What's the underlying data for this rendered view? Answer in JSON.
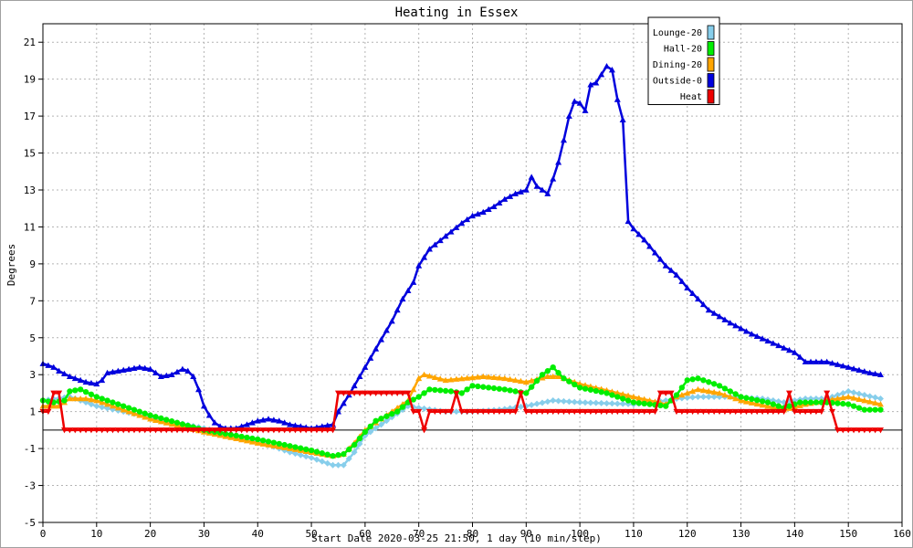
{
  "chart_data": {
    "type": "line",
    "title": "Heating in Essex",
    "xlabel": "Start Date 2020-03-25 21:50, 1 day (10 min/step)",
    "ylabel": "Degrees",
    "xlim": [
      0,
      160
    ],
    "ylim": [
      -5,
      22
    ],
    "x_ticks": [
      0,
      10,
      20,
      30,
      40,
      50,
      60,
      70,
      80,
      90,
      100,
      110,
      120,
      130,
      140,
      150,
      160
    ],
    "y_ticks": [
      -5,
      -3,
      -1,
      1,
      3,
      5,
      7,
      9,
      11,
      13,
      15,
      17,
      19,
      21
    ],
    "grid": true,
    "legend_position": "top-right",
    "x_step": 1,
    "series": [
      {
        "name": "Lounge-20",
        "color": "#87ceeb",
        "marker": "diamond",
        "points": [
          [
            0,
            1.6
          ],
          [
            5,
            1.8
          ],
          [
            10,
            1.3
          ],
          [
            20,
            0.7
          ],
          [
            30,
            0.1
          ],
          [
            40,
            -0.6
          ],
          [
            46,
            -1.2
          ],
          [
            50,
            -1.5
          ],
          [
            54,
            -1.9
          ],
          [
            56,
            -1.9
          ],
          [
            58,
            -1.2
          ],
          [
            60,
            -0.3
          ],
          [
            63,
            0.3
          ],
          [
            66,
            0.9
          ],
          [
            68,
            1.3
          ],
          [
            70,
            1.2
          ],
          [
            75,
            1.0
          ],
          [
            80,
            1.0
          ],
          [
            85,
            1.1
          ],
          [
            90,
            1.3
          ],
          [
            95,
            1.6
          ],
          [
            100,
            1.5
          ],
          [
            110,
            1.4
          ],
          [
            114,
            1.5
          ],
          [
            118,
            1.7
          ],
          [
            122,
            1.8
          ],
          [
            128,
            1.8
          ],
          [
            134,
            1.7
          ],
          [
            138,
            1.5
          ],
          [
            142,
            1.7
          ],
          [
            146,
            1.7
          ],
          [
            150,
            2.1
          ],
          [
            156,
            1.7
          ]
        ]
      },
      {
        "name": "Hall-20",
        "color": "#00ee00",
        "marker": "circle",
        "points": [
          [
            0,
            1.6
          ],
          [
            2,
            1.5
          ],
          [
            4,
            1.6
          ],
          [
            5,
            2.1
          ],
          [
            7,
            2.2
          ],
          [
            10,
            1.8
          ],
          [
            20,
            0.8
          ],
          [
            30,
            0.0
          ],
          [
            40,
            -0.5
          ],
          [
            50,
            -1.1
          ],
          [
            54,
            -1.4
          ],
          [
            56,
            -1.3
          ],
          [
            58,
            -0.8
          ],
          [
            60,
            -0.1
          ],
          [
            62,
            0.5
          ],
          [
            66,
            1.0
          ],
          [
            68,
            1.5
          ],
          [
            70,
            1.8
          ],
          [
            72,
            2.2
          ],
          [
            76,
            2.1
          ],
          [
            78,
            2.0
          ],
          [
            80,
            2.4
          ],
          [
            86,
            2.2
          ],
          [
            90,
            2.0
          ],
          [
            93,
            3.0
          ],
          [
            95,
            3.4
          ],
          [
            97,
            2.8
          ],
          [
            100,
            2.3
          ],
          [
            105,
            2.0
          ],
          [
            110,
            1.5
          ],
          [
            116,
            1.3
          ],
          [
            118,
            1.9
          ],
          [
            120,
            2.7
          ],
          [
            122,
            2.8
          ],
          [
            126,
            2.4
          ],
          [
            130,
            1.8
          ],
          [
            135,
            1.5
          ],
          [
            138,
            1.2
          ],
          [
            141,
            1.5
          ],
          [
            146,
            1.5
          ],
          [
            150,
            1.4
          ],
          [
            153,
            1.1
          ],
          [
            156,
            1.1
          ]
        ]
      },
      {
        "name": "Dining-20",
        "color": "#ffa500",
        "marker": "triangle",
        "points": [
          [
            0,
            1.3
          ],
          [
            3,
            1.3
          ],
          [
            5,
            1.7
          ],
          [
            8,
            1.7
          ],
          [
            10,
            1.6
          ],
          [
            20,
            0.6
          ],
          [
            30,
            -0.1
          ],
          [
            40,
            -0.7
          ],
          [
            50,
            -1.2
          ],
          [
            54,
            -1.4
          ],
          [
            56,
            -1.3
          ],
          [
            58,
            -0.7
          ],
          [
            60,
            0.0
          ],
          [
            64,
            0.8
          ],
          [
            68,
            1.6
          ],
          [
            70,
            2.8
          ],
          [
            71,
            3.0
          ],
          [
            75,
            2.7
          ],
          [
            82,
            2.9
          ],
          [
            86,
            2.8
          ],
          [
            90,
            2.6
          ],
          [
            94,
            2.9
          ],
          [
            96,
            2.9
          ],
          [
            100,
            2.5
          ],
          [
            110,
            1.8
          ],
          [
            116,
            1.4
          ],
          [
            118,
            1.8
          ],
          [
            122,
            2.2
          ],
          [
            126,
            2.0
          ],
          [
            130,
            1.6
          ],
          [
            138,
            1.1
          ],
          [
            142,
            1.4
          ],
          [
            146,
            1.6
          ],
          [
            150,
            1.8
          ],
          [
            156,
            1.4
          ]
        ]
      },
      {
        "name": "Outside-0",
        "color": "#0000dd",
        "marker": "triangle",
        "points": [
          [
            0,
            3.6
          ],
          [
            2,
            3.4
          ],
          [
            3,
            3.2
          ],
          [
            5,
            2.9
          ],
          [
            8,
            2.6
          ],
          [
            10,
            2.5
          ],
          [
            11,
            2.7
          ],
          [
            12,
            3.1
          ],
          [
            14,
            3.2
          ],
          [
            18,
            3.4
          ],
          [
            20,
            3.3
          ],
          [
            22,
            2.9
          ],
          [
            24,
            3.0
          ],
          [
            26,
            3.3
          ],
          [
            27,
            3.2
          ],
          [
            28,
            2.9
          ],
          [
            29,
            2.2
          ],
          [
            30,
            1.3
          ],
          [
            31,
            0.8
          ],
          [
            32,
            0.4
          ],
          [
            33,
            0.2
          ],
          [
            34,
            0.1
          ],
          [
            36,
            0.1
          ],
          [
            38,
            0.3
          ],
          [
            40,
            0.5
          ],
          [
            42,
            0.6
          ],
          [
            44,
            0.5
          ],
          [
            46,
            0.3
          ],
          [
            48,
            0.2
          ],
          [
            50,
            0.1
          ],
          [
            52,
            0.2
          ],
          [
            54,
            0.3
          ],
          [
            55,
            1.0
          ],
          [
            57,
            1.9
          ],
          [
            59,
            2.9
          ],
          [
            61,
            3.9
          ],
          [
            63,
            4.9
          ],
          [
            65,
            5.9
          ],
          [
            67,
            7.1
          ],
          [
            69,
            8.0
          ],
          [
            70,
            8.9
          ],
          [
            72,
            9.8
          ],
          [
            75,
            10.5
          ],
          [
            78,
            11.2
          ],
          [
            80,
            11.6
          ],
          [
            82,
            11.8
          ],
          [
            84,
            12.1
          ],
          [
            86,
            12.5
          ],
          [
            88,
            12.8
          ],
          [
            90,
            13.0
          ],
          [
            91,
            13.7
          ],
          [
            92,
            13.2
          ],
          [
            93,
            13.0
          ],
          [
            94,
            12.8
          ],
          [
            95,
            13.6
          ],
          [
            96,
            14.5
          ],
          [
            97,
            15.7
          ],
          [
            98,
            17.0
          ],
          [
            99,
            17.8
          ],
          [
            100,
            17.7
          ],
          [
            101,
            17.3
          ],
          [
            102,
            18.7
          ],
          [
            103,
            18.8
          ],
          [
            105,
            19.7
          ],
          [
            106,
            19.5
          ],
          [
            107,
            17.9
          ],
          [
            108,
            16.8
          ],
          [
            109,
            11.3
          ],
          [
            110,
            10.9
          ],
          [
            112,
            10.3
          ],
          [
            114,
            9.6
          ],
          [
            116,
            8.9
          ],
          [
            118,
            8.4
          ],
          [
            120,
            7.7
          ],
          [
            124,
            6.5
          ],
          [
            128,
            5.8
          ],
          [
            132,
            5.2
          ],
          [
            136,
            4.7
          ],
          [
            140,
            4.2
          ],
          [
            142,
            3.7
          ],
          [
            146,
            3.7
          ],
          [
            150,
            3.4
          ],
          [
            154,
            3.1
          ],
          [
            156,
            3.0
          ]
        ]
      },
      {
        "name": "Heat",
        "color": "#ee0000",
        "marker": "triangle-down",
        "points": [
          [
            0,
            1
          ],
          [
            1,
            1
          ],
          [
            2,
            2
          ],
          [
            3,
            2
          ],
          [
            4,
            0
          ],
          [
            5,
            0
          ],
          [
            54,
            0
          ],
          [
            55,
            2
          ],
          [
            68,
            2
          ],
          [
            69,
            1
          ],
          [
            70,
            1
          ],
          [
            71,
            0
          ],
          [
            72,
            1
          ],
          [
            76,
            1
          ],
          [
            77,
            2
          ],
          [
            78,
            1
          ],
          [
            88,
            1
          ],
          [
            89,
            2
          ],
          [
            90,
            1
          ],
          [
            114,
            1
          ],
          [
            115,
            2
          ],
          [
            117,
            2
          ],
          [
            118,
            1
          ],
          [
            138,
            1
          ],
          [
            139,
            2
          ],
          [
            140,
            1
          ],
          [
            145,
            1
          ],
          [
            146,
            2
          ],
          [
            147,
            1
          ],
          [
            148,
            0
          ],
          [
            156,
            0
          ]
        ]
      }
    ]
  }
}
